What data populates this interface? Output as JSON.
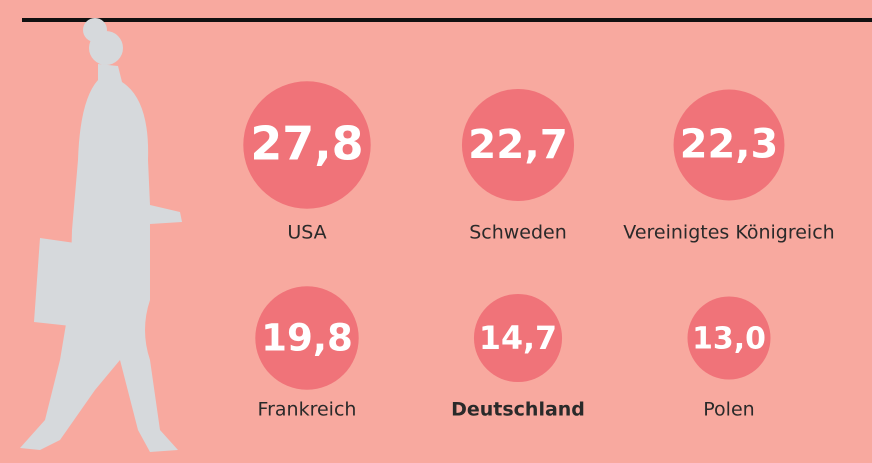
{
  "chart_data": {
    "type": "bubble",
    "categories": [
      "USA",
      "Schweden",
      "Vereinigtes Königreich",
      "Frankreich",
      "Deutschland",
      "Polen"
    ],
    "values": [
      27.8,
      22.7,
      22.3,
      19.8,
      14.7,
      13.0
    ],
    "value_labels": [
      "27,8",
      "22,7",
      "22,3",
      "19,8",
      "14,7",
      "13,0"
    ],
    "color": "#f07379",
    "highlight": 4
  }
}
